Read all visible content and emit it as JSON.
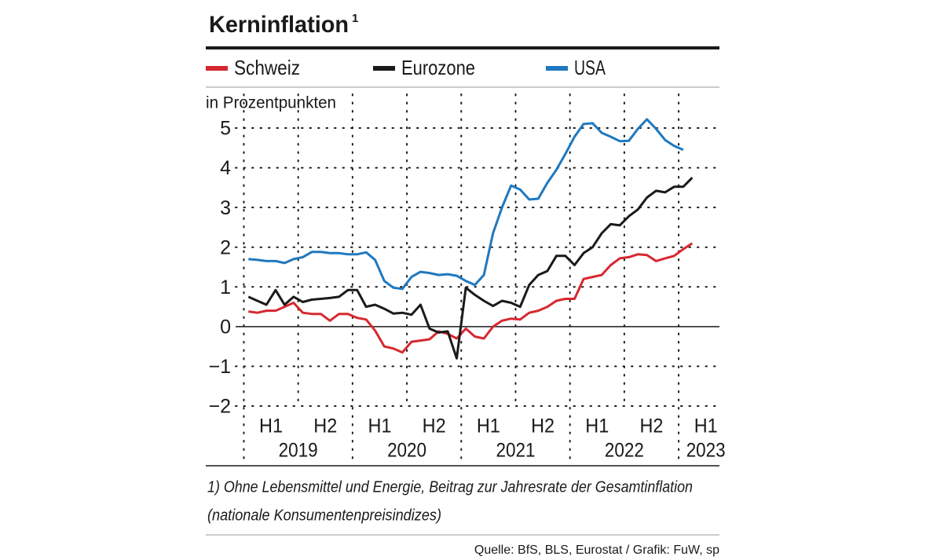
{
  "chart_data": {
    "type": "line",
    "title": "Kerninflation",
    "title_note": "1",
    "ylabel": "in Prozentpunkten",
    "x": [
      2019.042,
      2019.125,
      2019.208,
      2019.292,
      2019.375,
      2019.458,
      2019.542,
      2019.625,
      2019.708,
      2019.792,
      2019.875,
      2019.958,
      2020.042,
      2020.125,
      2020.208,
      2020.292,
      2020.375,
      2020.458,
      2020.542,
      2020.625,
      2020.708,
      2020.792,
      2020.875,
      2020.958,
      2021.042,
      2021.125,
      2021.208,
      2021.292,
      2021.375,
      2021.458,
      2021.542,
      2021.625,
      2021.708,
      2021.792,
      2021.875,
      2021.958,
      2022.042,
      2022.125,
      2022.208,
      2022.292,
      2022.375,
      2022.458,
      2022.542,
      2022.625,
      2022.708,
      2022.792,
      2022.875,
      2022.958,
      2023.042,
      2023.125
    ],
    "series": [
      {
        "name": "Schweiz",
        "color": "#d7282f",
        "values": [
          0.38,
          0.35,
          0.4,
          0.4,
          0.5,
          0.6,
          0.35,
          0.32,
          0.32,
          0.15,
          0.32,
          0.32,
          0.22,
          0.18,
          -0.1,
          -0.5,
          -0.55,
          -0.65,
          -0.38,
          -0.35,
          -0.32,
          -0.12,
          -0.18,
          -0.3,
          -0.05,
          -0.25,
          -0.3,
          0.0,
          0.15,
          0.2,
          0.18,
          0.35,
          0.4,
          0.5,
          0.65,
          0.7,
          0.7,
          1.2,
          1.25,
          1.3,
          1.55,
          1.72,
          1.75,
          1.82,
          1.8,
          1.65,
          1.72,
          1.78,
          1.95,
          2.1
        ]
      },
      {
        "name": "Eurozone",
        "color": "#1a1a1a",
        "values": [
          0.75,
          0.65,
          0.55,
          0.92,
          0.55,
          0.75,
          0.62,
          0.68,
          0.7,
          0.72,
          0.75,
          0.92,
          0.92,
          0.5,
          0.55,
          0.45,
          0.33,
          0.35,
          0.3,
          0.55,
          -0.05,
          -0.15,
          -0.12,
          -0.8,
          0.98,
          0.8,
          0.65,
          0.52,
          0.65,
          0.6,
          0.5,
          1.05,
          1.3,
          1.4,
          1.78,
          1.78,
          1.55,
          1.85,
          2.0,
          2.35,
          2.58,
          2.55,
          2.78,
          2.95,
          3.25,
          3.42,
          3.38,
          3.52,
          3.52,
          3.75
        ]
      },
      {
        "name": "USA",
        "color": "#1f78bf",
        "values": [
          1.7,
          1.68,
          1.65,
          1.65,
          1.6,
          1.7,
          1.75,
          1.88,
          1.88,
          1.85,
          1.85,
          1.82,
          1.82,
          1.87,
          1.68,
          1.15,
          0.98,
          0.95,
          1.25,
          1.38,
          1.35,
          1.3,
          1.32,
          1.28,
          1.15,
          1.05,
          1.3,
          2.35,
          3.0,
          3.55,
          3.45,
          3.2,
          3.22,
          3.62,
          3.95,
          4.35,
          4.78,
          5.1,
          5.12,
          4.88,
          4.78,
          4.67,
          4.68,
          4.98,
          5.22,
          4.98,
          4.7,
          4.55,
          4.45,
          null
        ]
      }
    ],
    "xlim": [
      2018.65,
      2023.375
    ],
    "ylim": [
      -2,
      5
    ],
    "yticks": [
      {
        "value": -2,
        "label": "−2"
      },
      {
        "value": -1,
        "label": "−1"
      },
      0,
      1,
      2,
      3,
      4,
      5
    ],
    "xticks": [
      {
        "value": 2019.25,
        "label": "H1"
      },
      {
        "value": 2019.75,
        "label": "H2"
      },
      {
        "value": 2020.25,
        "label": "H1"
      },
      {
        "value": 2020.75,
        "label": "H2"
      },
      {
        "value": 2021.25,
        "label": "H1"
      },
      {
        "value": 2021.75,
        "label": "H2"
      },
      {
        "value": 2022.25,
        "label": "H1"
      },
      {
        "value": 2022.75,
        "label": "H2"
      },
      {
        "value": 2023.25,
        "label": "H1"
      }
    ],
    "year_labels": [
      {
        "value": 2019.5,
        "label": "2019"
      },
      {
        "value": 2020.5,
        "label": "2020"
      },
      {
        "value": 2021.5,
        "label": "2021"
      },
      {
        "value": 2022.5,
        "label": "2022"
      },
      {
        "value": 2023.25,
        "label": "2023"
      }
    ],
    "x_grid": [
      2019,
      2019.5,
      2020,
      2020.5,
      2021,
      2021.5,
      2022,
      2022.5,
      2023
    ],
    "grid": true,
    "footnote": [
      "1) Ohne Lebensmittel und Energie, Beitrag zur Jahresrate der Gesamtinflation",
      "(nationale Konsumentenpreisindizes)"
    ],
    "source": "Quelle: BfS, BLS, Eurostat / Grafik: FuW, sp"
  }
}
